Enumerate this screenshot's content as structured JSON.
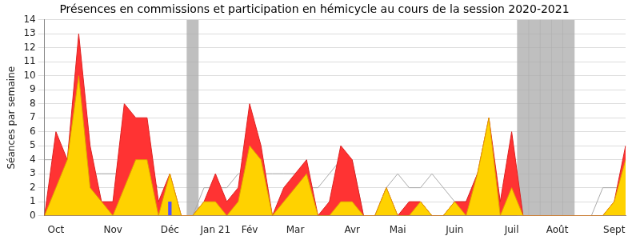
{
  "chart_data": {
    "type": "line",
    "title": "Présences en commissions et participation en hémicycle au cours de la session 2020-2021",
    "y_label": "Séances par semaine",
    "categories": [
      null,
      "Oct",
      null,
      null,
      null,
      null,
      "Nov",
      null,
      null,
      null,
      null,
      "Déc",
      null,
      null,
      null,
      "Jan 21",
      null,
      null,
      "Fév",
      null,
      null,
      null,
      "Mar",
      null,
      null,
      null,
      null,
      "Avr",
      null,
      null,
      null,
      "Mai",
      null,
      null,
      null,
      null,
      "Juin",
      null,
      null,
      null,
      null,
      "Juil",
      null,
      null,
      null,
      "Août",
      null,
      null,
      null,
      null,
      "Sept",
      null
    ],
    "series": [
      {
        "type": "area",
        "color": "#ff3333",
        "values": [
          0,
          6,
          4,
          13,
          5,
          1,
          1,
          8,
          7,
          7,
          1,
          3,
          0,
          0,
          1,
          3,
          1,
          2,
          8,
          5,
          0,
          2,
          3,
          4,
          0,
          1,
          5,
          4,
          0,
          0,
          2,
          0,
          1,
          1,
          0,
          0,
          1,
          1,
          3,
          7,
          1,
          6,
          0,
          0,
          0,
          0,
          0,
          0,
          0,
          0,
          1,
          5
        ]
      },
      {
        "type": "area",
        "color": "#ffd200",
        "values": [
          0,
          2,
          4,
          10,
          2,
          1,
          0,
          2,
          4,
          4,
          0,
          3,
          0,
          0,
          1,
          1,
          0,
          1,
          5,
          4,
          0,
          1,
          2,
          3,
          0,
          0,
          1,
          1,
          0,
          0,
          2,
          0,
          0,
          1,
          0,
          0,
          1,
          0,
          3,
          7,
          0,
          2,
          0,
          0,
          0,
          0,
          0,
          0,
          0,
          0,
          1,
          4
        ]
      },
      {
        "type": "line",
        "color": "#aaaaaa",
        "values": [
          4,
          4,
          4,
          3,
          3,
          3,
          3,
          3,
          3,
          3,
          2,
          2,
          0,
          0,
          2,
          2,
          2,
          3,
          3,
          3,
          3,
          3,
          3,
          2,
          2,
          3,
          4,
          4,
          0,
          0,
          2,
          3,
          2,
          2,
          3,
          2,
          1,
          1,
          3,
          3,
          1,
          1,
          0,
          0,
          0,
          0,
          0,
          0,
          0,
          2,
          2,
          2
        ]
      },
      {
        "type": "bar",
        "color": "#5050ff",
        "values": [
          null,
          null,
          null,
          null,
          null,
          null,
          null,
          null,
          null,
          null,
          null,
          1,
          null,
          null,
          null,
          null,
          null,
          null,
          null,
          null,
          null,
          null,
          null,
          null,
          null,
          null,
          null,
          null,
          null,
          null,
          null,
          null,
          null,
          null,
          null,
          null,
          null,
          null,
          null,
          null,
          null,
          null,
          null,
          null,
          null,
          null,
          null,
          null,
          null,
          null,
          null,
          null
        ]
      },
      {
        "type": "bar",
        "color": "#aaaaaa",
        "values": [
          null,
          null,
          null,
          null,
          null,
          null,
          null,
          null,
          null,
          null,
          null,
          null,
          null,
          14,
          null,
          null,
          null,
          null,
          null,
          null,
          null,
          null,
          null,
          null,
          null,
          null,
          null,
          null,
          null,
          null,
          null,
          null,
          null,
          null,
          null,
          null,
          null,
          null,
          null,
          null,
          null,
          null,
          14,
          14,
          14,
          14,
          14,
          null,
          null,
          null,
          null,
          null
        ]
      }
    ],
    "ylim": [
      0,
      14
    ],
    "yticks": [
      0,
      1,
      2,
      3,
      4,
      5,
      6,
      7,
      8,
      9,
      10,
      11,
      12,
      13,
      14
    ],
    "grid": true
  }
}
